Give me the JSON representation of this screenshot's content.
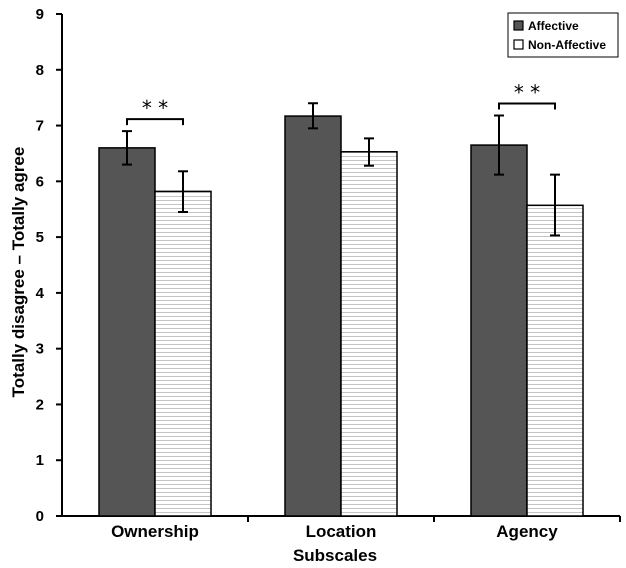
{
  "chart_data": {
    "type": "bar",
    "title": "",
    "xlabel": "Subscales",
    "ylabel": "Totally disagree – Totally agree",
    "categories": [
      "Ownership",
      "Location",
      "Agency"
    ],
    "ylim": [
      0,
      9
    ],
    "yticks": [
      0,
      1,
      2,
      3,
      4,
      5,
      6,
      7,
      8,
      9
    ],
    "grid": false,
    "legend_position": "top-right",
    "series": [
      {
        "name": "Affective",
        "color": "#555555",
        "pattern": "solid",
        "values": [
          6.6,
          7.17,
          6.65
        ],
        "error_low": [
          6.3,
          6.95,
          6.12
        ],
        "error_high": [
          6.9,
          7.4,
          7.18
        ]
      },
      {
        "name": "Non-Affective",
        "color": "#ffffff",
        "pattern": "horizontal-lines",
        "values": [
          5.82,
          6.53,
          5.57
        ],
        "error_low": [
          5.45,
          6.28,
          5.03
        ],
        "error_high": [
          6.18,
          6.77,
          6.12
        ]
      }
    ],
    "annotations": [
      {
        "category": "Ownership",
        "text": "* *"
      },
      {
        "category": "Agency",
        "text": "* *"
      }
    ]
  }
}
